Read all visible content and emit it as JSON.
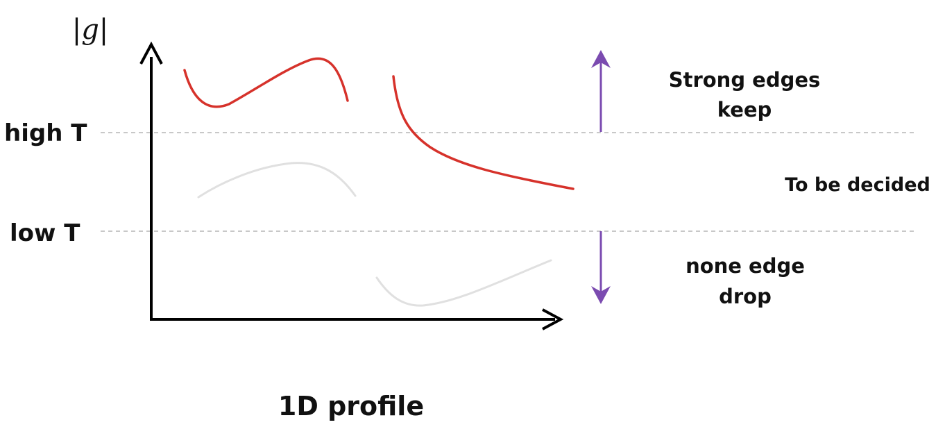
{
  "y_axis_label": "|g|",
  "x_axis_label": "1D profile",
  "thresholds": {
    "high": "high T",
    "low": "low T"
  },
  "regions": {
    "strong": [
      "Strong edges",
      "keep"
    ],
    "middle": "To be decided",
    "none": [
      "none edge",
      "drop"
    ]
  },
  "colors": {
    "strong_curve": "#d6322b",
    "weak_curve": "#e0e0e0",
    "arrow": "#7b4bb0",
    "axis": "#000000",
    "threshold_line": "#b5b5b5"
  }
}
